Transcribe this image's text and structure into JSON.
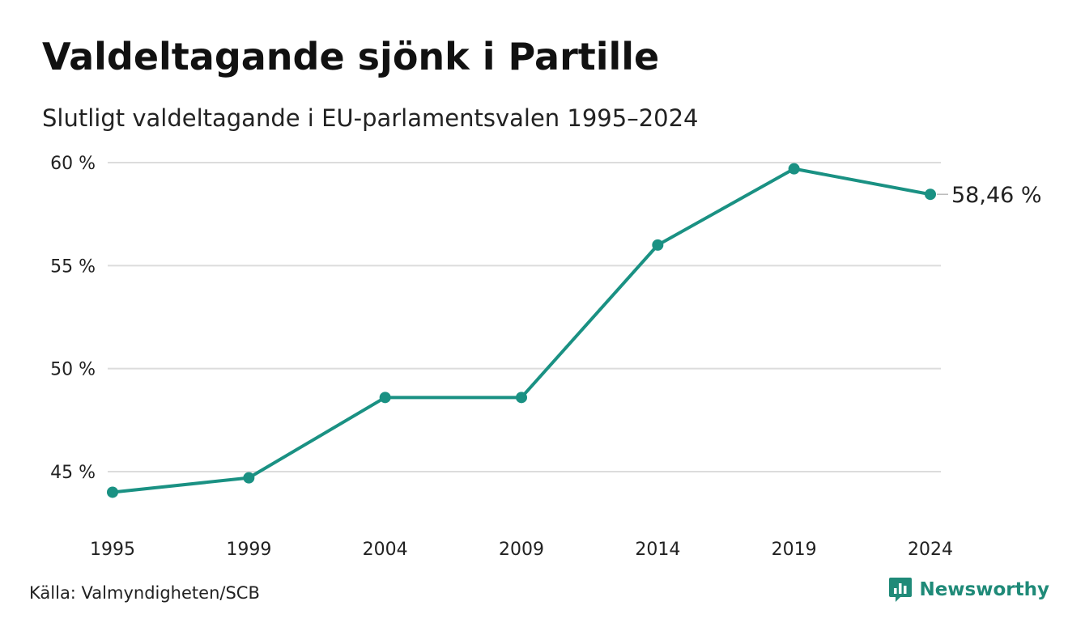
{
  "header": {
    "title": "Valdeltagande sjönk i Partille",
    "subtitle": "Slutligt valdeltagande i EU-parlamentsvalen 1995–2024"
  },
  "footer": {
    "source": "Källa: Valmyndigheten/SCB",
    "brand": "Newsworthy",
    "brand_icon": "newsworthy-logo-icon"
  },
  "colors": {
    "line": "#1a9183",
    "grid": "#dcdcdc",
    "text": "#222222",
    "brand": "#1f8a78"
  },
  "chart_data": {
    "type": "line",
    "title": "Valdeltagande sjönk i Partille",
    "subtitle": "Slutligt valdeltagande i EU-parlamentsvalen 1995–2024",
    "categories": [
      "1995",
      "1999",
      "2004",
      "2009",
      "2014",
      "2019",
      "2024"
    ],
    "series": [
      {
        "values": [
          44.0,
          44.7,
          48.6,
          48.6,
          56.0,
          59.7,
          58.46
        ]
      }
    ],
    "ylim": [
      43,
      60
    ],
    "yticks": [
      45,
      50,
      55,
      60
    ],
    "ytick_labels": [
      "45 %",
      "50 %",
      "55 %",
      "60 %"
    ],
    "end_label": "58,46 %",
    "grid": "horizontal",
    "legend": "none"
  }
}
